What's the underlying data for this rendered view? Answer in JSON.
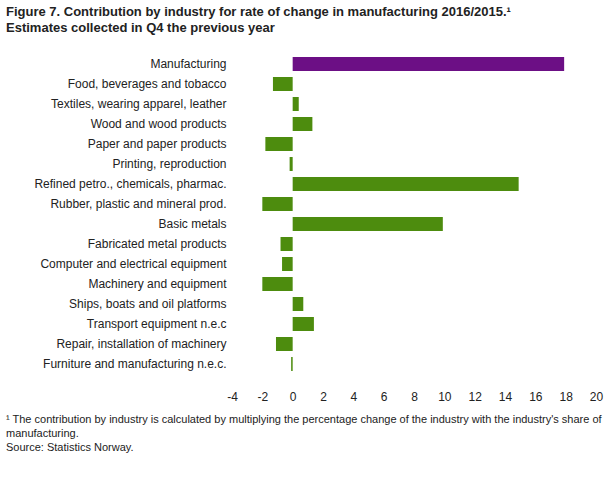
{
  "chart_data": {
    "type": "bar",
    "orientation": "horizontal",
    "title": "Figure 7. Contribution by industry for rate of change in manufacturing  2016/2015.¹",
    "subtitle": "Estimates collected in Q4 the previous year",
    "footnotes": [
      "¹ The contribution by industry is calculated by multiplying the percentage change of the industry with the industry's share of manufacturing.",
      "Source: Statistics Norway."
    ],
    "categories": [
      "Manufacturing",
      "Food, beverages and tobacco",
      "Textiles, wearing apparel, leather",
      "Wood and wood products",
      "Paper and paper products",
      "Printing, reproduction",
      "Refined petro., chemicals, pharmac.",
      "Rubber, plastic and mineral prod.",
      "Basic metals",
      "Fabricated metal products",
      "Computer and electrical equipment",
      "Machinery and equipment",
      "Ships, boats and oil platforms",
      "Transport equipment n.e.c",
      "Repair, installation of machinery",
      "Furniture and manufacturing n.e.c."
    ],
    "values": [
      17.9,
      -1.3,
      0.4,
      1.3,
      -1.8,
      -0.2,
      14.9,
      -2.0,
      9.9,
      -0.8,
      -0.7,
      -2.0,
      0.7,
      1.4,
      -1.1,
      -0.1
    ],
    "colors": [
      "#6c0f85",
      "#4d8c0e",
      "#4d8c0e",
      "#4d8c0e",
      "#4d8c0e",
      "#4d8c0e",
      "#4d8c0e",
      "#4d8c0e",
      "#4d8c0e",
      "#4d8c0e",
      "#4d8c0e",
      "#4d8c0e",
      "#4d8c0e",
      "#4d8c0e",
      "#4d8c0e",
      "#4d8c0e"
    ],
    "xlim": [
      -4,
      20
    ],
    "xticks": [
      -4,
      -2,
      0,
      2,
      4,
      6,
      8,
      10,
      12,
      14,
      16,
      18,
      20
    ],
    "grid": false
  }
}
